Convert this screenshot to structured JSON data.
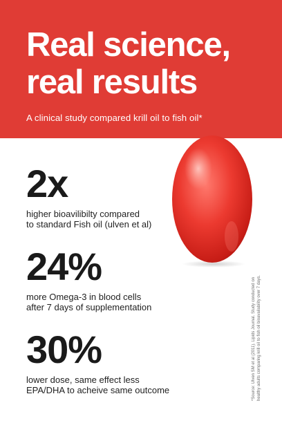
{
  "header": {
    "title_line1": "Real science,",
    "title_line2": "real results",
    "subtitle": "A clinical study compared krill oil to fish oil*"
  },
  "colors": {
    "brand_red": "#e03c35",
    "text_dark": "#1a1a1a",
    "capsule_red": "#e8322a"
  },
  "stats": [
    {
      "value": "2x",
      "desc_line1": "higher bioavilibilty compared",
      "desc_line2": "to standard Fish oil (ulven et al)"
    },
    {
      "value": "24%",
      "desc_line1": "more Omega-3 in blood cells",
      "desc_line2": "after 7 days of supplementation"
    },
    {
      "value": "30%",
      "desc_line1": "lower dose, same effect less",
      "desc_line2": "EPA/DHA to acheive same outcome"
    }
  ],
  "footnote": {
    "line1": "*Source: Ulven SM et al (2011). Lipids Journal. Study conducted on",
    "line2": "healthy adults comparing krill oil to fish oil bioavailability over 7 days."
  }
}
